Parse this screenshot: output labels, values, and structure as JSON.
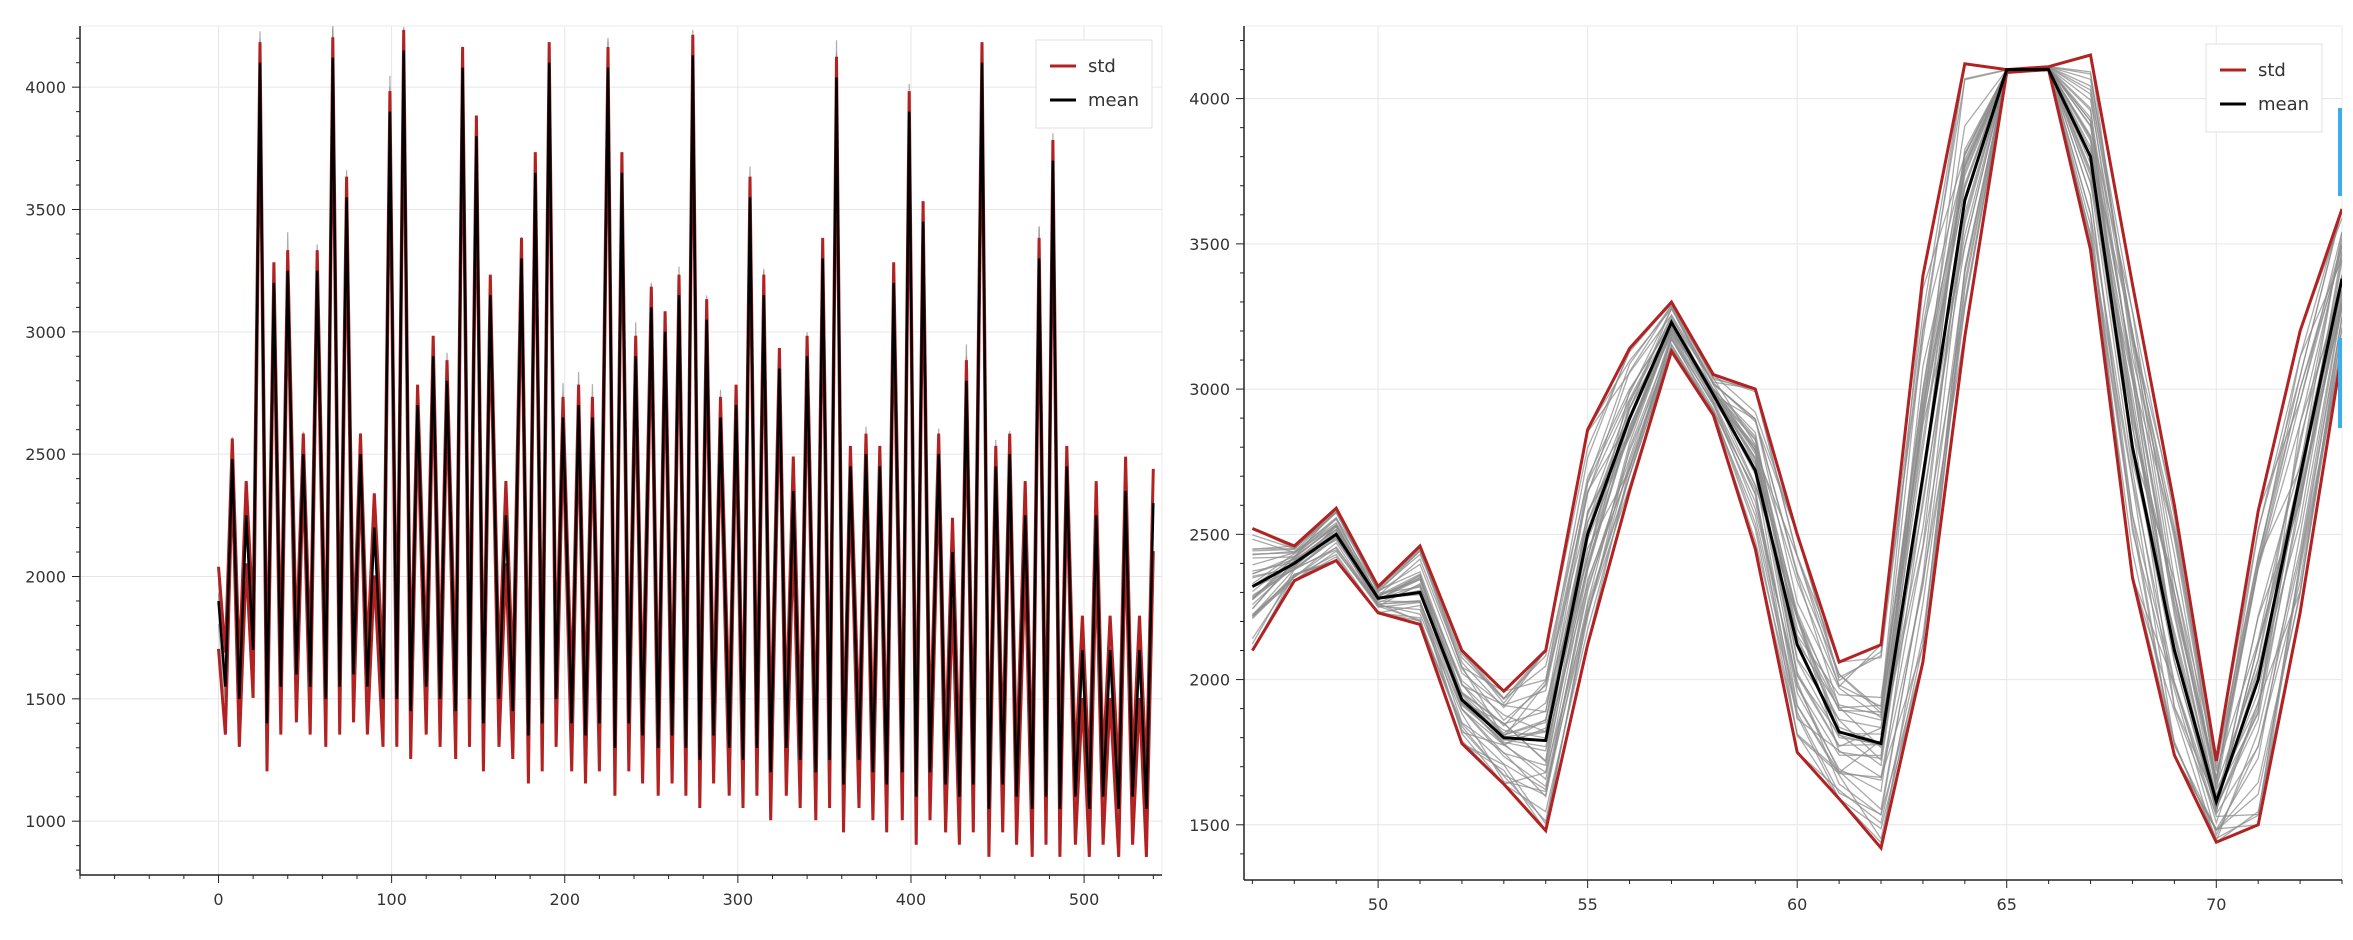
{
  "legend": {
    "std_label": "std",
    "mean_label": "mean"
  },
  "colors": {
    "std": "#b22222",
    "mean": "#000000",
    "samples": "#8c8c8c",
    "grid": "#e6e6e6",
    "axis": "#222222",
    "scroll_accent": "#3daee9"
  },
  "chart_data": [
    {
      "type": "line",
      "title": "",
      "xlabel": "",
      "ylabel": "",
      "xlim": [
        -80,
        545
      ],
      "ylim": [
        780,
        4250
      ],
      "grid": true,
      "legend_position": "top-right",
      "x_ticks": [
        0,
        100,
        200,
        300,
        400,
        500
      ],
      "y_ticks": [
        1000,
        1500,
        2000,
        2500,
        3000,
        3500,
        4000
      ],
      "x_tick_labels": [
        "0",
        "100",
        "200",
        "300",
        "400",
        "500"
      ],
      "y_tick_labels": [
        "1000",
        "1500",
        "2000",
        "2500",
        "3000",
        "3500",
        "4000"
      ],
      "series": [
        {
          "name": "std",
          "role": "band",
          "description_values_from": "peaks_and_troughs",
          "band_width": 140
        },
        {
          "name": "mean",
          "role": "mean"
        }
      ],
      "peaks": [
        {
          "x": 0,
          "y": 1900
        },
        {
          "x": 8,
          "y": 2480
        },
        {
          "x": 16,
          "y": 2250
        },
        {
          "x": 24,
          "y": 4100
        },
        {
          "x": 32,
          "y": 3200
        },
        {
          "x": 40,
          "y": 3250
        },
        {
          "x": 49,
          "y": 2500
        },
        {
          "x": 57,
          "y": 3250
        },
        {
          "x": 66,
          "y": 4120
        },
        {
          "x": 74,
          "y": 3550
        },
        {
          "x": 82,
          "y": 2500
        },
        {
          "x": 90,
          "y": 2200
        },
        {
          "x": 99,
          "y": 3900
        },
        {
          "x": 107,
          "y": 4150
        },
        {
          "x": 115,
          "y": 2700
        },
        {
          "x": 124,
          "y": 2900
        },
        {
          "x": 132,
          "y": 2800
        },
        {
          "x": 141,
          "y": 4080
        },
        {
          "x": 149,
          "y": 3800
        },
        {
          "x": 157,
          "y": 3150
        },
        {
          "x": 166,
          "y": 2250
        },
        {
          "x": 175,
          "y": 3300
        },
        {
          "x": 183,
          "y": 3650
        },
        {
          "x": 191,
          "y": 4100
        },
        {
          "x": 199,
          "y": 2650
        },
        {
          "x": 208,
          "y": 2700
        },
        {
          "x": 216,
          "y": 2650
        },
        {
          "x": 225,
          "y": 4080
        },
        {
          "x": 233,
          "y": 3650
        },
        {
          "x": 241,
          "y": 2900
        },
        {
          "x": 250,
          "y": 3100
        },
        {
          "x": 258,
          "y": 3000
        },
        {
          "x": 266,
          "y": 3150
        },
        {
          "x": 274,
          "y": 4130
        },
        {
          "x": 282,
          "y": 3050
        },
        {
          "x": 290,
          "y": 2650
        },
        {
          "x": 299,
          "y": 2700
        },
        {
          "x": 307,
          "y": 3550
        },
        {
          "x": 315,
          "y": 3150
        },
        {
          "x": 324,
          "y": 2850
        },
        {
          "x": 332,
          "y": 2350
        },
        {
          "x": 340,
          "y": 2900
        },
        {
          "x": 349,
          "y": 3300
        },
        {
          "x": 357,
          "y": 4040
        },
        {
          "x": 365,
          "y": 2450
        },
        {
          "x": 374,
          "y": 2500
        },
        {
          "x": 382,
          "y": 2450
        },
        {
          "x": 390,
          "y": 3200
        },
        {
          "x": 399,
          "y": 3900
        },
        {
          "x": 407,
          "y": 3450
        },
        {
          "x": 416,
          "y": 2500
        },
        {
          "x": 424,
          "y": 2100
        },
        {
          "x": 432,
          "y": 2800
        },
        {
          "x": 441,
          "y": 4100
        },
        {
          "x": 449,
          "y": 2450
        },
        {
          "x": 457,
          "y": 2500
        },
        {
          "x": 466,
          "y": 2250
        },
        {
          "x": 474,
          "y": 3300
        },
        {
          "x": 482,
          "y": 3700
        },
        {
          "x": 490,
          "y": 2450
        },
        {
          "x": 499,
          "y": 1700
        },
        {
          "x": 507,
          "y": 2250
        },
        {
          "x": 515,
          "y": 1700
        },
        {
          "x": 524,
          "y": 2350
        },
        {
          "x": 532,
          "y": 1700
        },
        {
          "x": 540,
          "y": 2300
        }
      ],
      "troughs": [
        {
          "x": 4,
          "y": 1550
        },
        {
          "x": 12,
          "y": 1500
        },
        {
          "x": 20,
          "y": 1700
        },
        {
          "x": 28,
          "y": 1400
        },
        {
          "x": 36,
          "y": 1550
        },
        {
          "x": 45,
          "y": 1600
        },
        {
          "x": 53,
          "y": 1550
        },
        {
          "x": 62,
          "y": 1500
        },
        {
          "x": 70,
          "y": 1550
        },
        {
          "x": 78,
          "y": 1600
        },
        {
          "x": 86,
          "y": 1550
        },
        {
          "x": 95,
          "y": 1500
        },
        {
          "x": 103,
          "y": 1500
        },
        {
          "x": 111,
          "y": 1450
        },
        {
          "x": 120,
          "y": 1550
        },
        {
          "x": 128,
          "y": 1500
        },
        {
          "x": 137,
          "y": 1450
        },
        {
          "x": 145,
          "y": 1500
        },
        {
          "x": 153,
          "y": 1400
        },
        {
          "x": 162,
          "y": 1500
        },
        {
          "x": 170,
          "y": 1450
        },
        {
          "x": 179,
          "y": 1350
        },
        {
          "x": 187,
          "y": 1400
        },
        {
          "x": 195,
          "y": 1500
        },
        {
          "x": 204,
          "y": 1400
        },
        {
          "x": 212,
          "y": 1350
        },
        {
          "x": 220,
          "y": 1400
        },
        {
          "x": 229,
          "y": 1300
        },
        {
          "x": 237,
          "y": 1400
        },
        {
          "x": 245,
          "y": 1350
        },
        {
          "x": 254,
          "y": 1300
        },
        {
          "x": 262,
          "y": 1350
        },
        {
          "x": 270,
          "y": 1300
        },
        {
          "x": 278,
          "y": 1250
        },
        {
          "x": 286,
          "y": 1350
        },
        {
          "x": 295,
          "y": 1300
        },
        {
          "x": 303,
          "y": 1250
        },
        {
          "x": 311,
          "y": 1300
        },
        {
          "x": 319,
          "y": 1200
        },
        {
          "x": 328,
          "y": 1300
        },
        {
          "x": 336,
          "y": 1250
        },
        {
          "x": 345,
          "y": 1200
        },
        {
          "x": 353,
          "y": 1250
        },
        {
          "x": 361,
          "y": 1150
        },
        {
          "x": 370,
          "y": 1250
        },
        {
          "x": 378,
          "y": 1200
        },
        {
          "x": 386,
          "y": 1150
        },
        {
          "x": 395,
          "y": 1200
        },
        {
          "x": 403,
          "y": 1100
        },
        {
          "x": 411,
          "y": 1200
        },
        {
          "x": 420,
          "y": 1150
        },
        {
          "x": 428,
          "y": 1100
        },
        {
          "x": 436,
          "y": 1150
        },
        {
          "x": 445,
          "y": 1050
        },
        {
          "x": 453,
          "y": 1150
        },
        {
          "x": 461,
          "y": 1100
        },
        {
          "x": 470,
          "y": 1050
        },
        {
          "x": 478,
          "y": 1100
        },
        {
          "x": 486,
          "y": 1050
        },
        {
          "x": 495,
          "y": 1100
        },
        {
          "x": 503,
          "y": 1050
        },
        {
          "x": 511,
          "y": 1100
        },
        {
          "x": 520,
          "y": 1050
        },
        {
          "x": 528,
          "y": 1100
        },
        {
          "x": 536,
          "y": 1050
        }
      ]
    },
    {
      "type": "line",
      "title": "",
      "xlabel": "",
      "ylabel": "",
      "xlim": [
        46.8,
        73
      ],
      "ylim": [
        1310,
        4250
      ],
      "grid": true,
      "legend_position": "top-right",
      "x_ticks": [
        50,
        55,
        60,
        65,
        70
      ],
      "y_ticks": [
        1500,
        2000,
        2500,
        3000,
        3500,
        4000
      ],
      "x_tick_labels": [
        "50",
        "55",
        "60",
        "65",
        "70"
      ],
      "y_tick_labels": [
        "1500",
        "2000",
        "2500",
        "3000",
        "3500",
        "4000"
      ],
      "x": [
        47,
        48,
        49,
        50,
        51,
        52,
        53,
        54,
        55,
        56,
        57,
        58,
        59,
        60,
        61,
        62,
        63,
        64,
        65,
        66,
        67,
        68,
        69,
        70,
        71,
        72,
        73
      ],
      "series": [
        {
          "name": "mean",
          "role": "mean",
          "values": [
            2320,
            2400,
            2500,
            2280,
            2300,
            1930,
            1800,
            1790,
            2500,
            2900,
            3230,
            2980,
            2720,
            2120,
            1820,
            1780,
            2700,
            3650,
            4100,
            4100,
            3800,
            2800,
            2100,
            1580,
            2000,
            2700,
            3380
          ]
        },
        {
          "name": "std",
          "role": "upper",
          "values": [
            2520,
            2460,
            2590,
            2320,
            2460,
            2100,
            1960,
            2100,
            2860,
            3140,
            3300,
            3050,
            3000,
            2500,
            2060,
            2120,
            3390,
            4120,
            4100,
            4110,
            4150,
            3360,
            2600,
            1720,
            2580,
            3200,
            3620
          ]
        },
        {
          "name": "std",
          "role": "lower",
          "values": [
            2100,
            2340,
            2410,
            2230,
            2190,
            1780,
            1640,
            1480,
            2120,
            2650,
            3130,
            2910,
            2450,
            1750,
            1590,
            1420,
            2060,
            3180,
            4090,
            4100,
            3480,
            2350,
            1740,
            1440,
            1500,
            2230,
            3130
          ]
        }
      ]
    }
  ]
}
